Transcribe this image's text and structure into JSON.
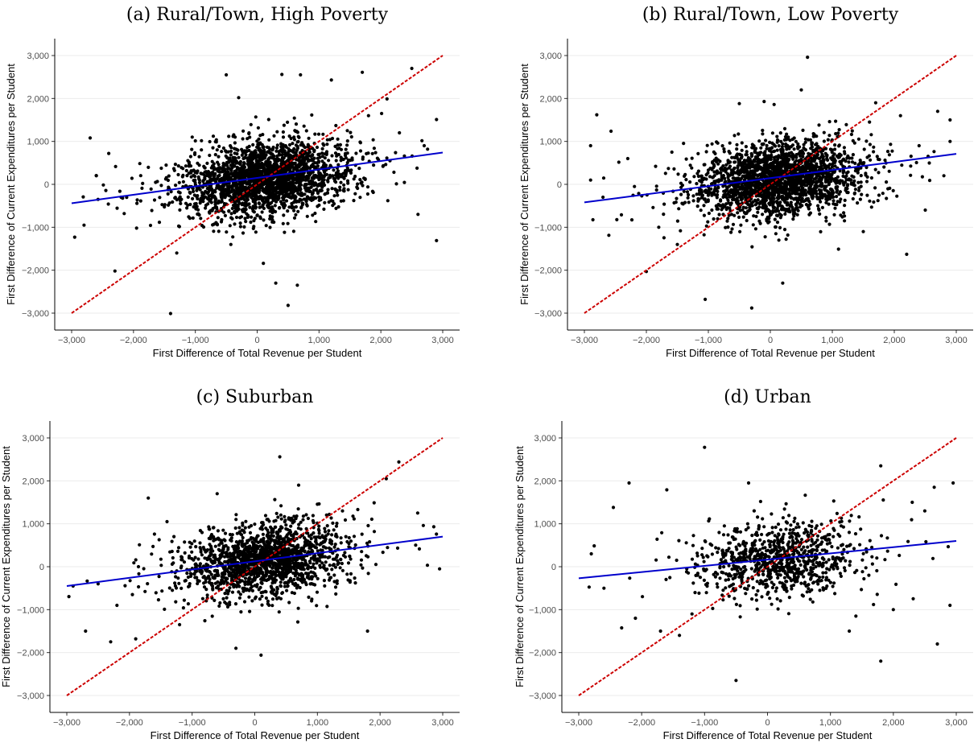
{
  "chart_data": [
    {
      "type": "scatter",
      "title": "(a) Rural/Town, High Poverty",
      "xlabel": "First Difference of Total Revenue per Student",
      "ylabel": "First Difference of Current Expenditures per Student",
      "xlim": [
        -3000,
        3000
      ],
      "ylim": [
        -3000,
        3000
      ],
      "xticks": [
        -3000,
        -2000,
        -1000,
        0,
        1000,
        2000,
        3000
      ],
      "yticks": [
        -3000,
        -2000,
        -1000,
        0,
        1000,
        2000,
        3000
      ],
      "xtick_labels": [
        "−3,000",
        "−2,000",
        "−1,000",
        "0",
        "1,000",
        "2,000",
        "3,000"
      ],
      "ytick_labels": [
        "−3,000",
        "−2,000",
        "−1,000",
        "0",
        "1,000",
        "2,000",
        "3,000"
      ],
      "grid": "horizontal",
      "point_color": "#000000",
      "fit_line": {
        "x": [
          -3000,
          3000
        ],
        "y": [
          -440,
          740
        ],
        "color": "#0000cc"
      },
      "reference_line": {
        "x": [
          -3000,
          3000
        ],
        "y": [
          -3000,
          3000
        ],
        "color": "#cc0000",
        "style": "dashed"
      },
      "points": [
        [
          -2950,
          -1230
        ],
        [
          -2700,
          1080
        ],
        [
          -2400,
          720
        ],
        [
          -2300,
          -2020
        ],
        [
          -2150,
          -680
        ],
        [
          -1950,
          -1020
        ],
        [
          -1400,
          -3010
        ],
        [
          -1050,
          1100
        ],
        [
          -500,
          2550
        ],
        [
          -300,
          2020
        ],
        [
          400,
          2560
        ],
        [
          700,
          2550
        ],
        [
          1200,
          2430
        ],
        [
          1700,
          2610
        ],
        [
          2100,
          1990
        ],
        [
          2500,
          2700
        ],
        [
          2900,
          1510
        ],
        [
          2900,
          -1310
        ],
        [
          500,
          -2820
        ],
        [
          300,
          -2300
        ],
        [
          650,
          -2350
        ],
        [
          100,
          -1840
        ],
        [
          -1300,
          -1600
        ],
        [
          -2800,
          -950
        ],
        [
          1800,
          1600
        ],
        [
          2300,
          1200
        ],
        [
          2700,
          900
        ],
        [
          -2600,
          200
        ],
        [
          -2200,
          -300
        ],
        [
          2600,
          -700
        ]
      ],
      "scatter_center": [
        150,
        140
      ]
    },
    {
      "type": "scatter",
      "title": "(b) Rural/Town, Low Poverty",
      "xlabel": "First Difference of Total Revenue per Student",
      "ylabel": "First Difference of Current Expenditures per Student",
      "xlim": [
        -3000,
        3000
      ],
      "ylim": [
        -3000,
        3000
      ],
      "xticks": [
        -3000,
        -2000,
        -1000,
        0,
        1000,
        2000,
        3000
      ],
      "yticks": [
        -3000,
        -2000,
        -1000,
        0,
        1000,
        2000,
        3000
      ],
      "xtick_labels": [
        "−3,000",
        "−2,000",
        "−1,000",
        "0",
        "1,000",
        "2,000",
        "3,000"
      ],
      "ytick_labels": [
        "−3,000",
        "−2,000",
        "−1,000",
        "0",
        "1,000",
        "2,000",
        "3,000"
      ],
      "grid": "horizontal",
      "point_color": "#000000",
      "fit_line": {
        "x": [
          -3000,
          3000
        ],
        "y": [
          -420,
          710
        ],
        "color": "#0000cc"
      },
      "reference_line": {
        "x": [
          -3000,
          3000
        ],
        "y": [
          -3000,
          3000
        ],
        "color": "#cc0000",
        "style": "dashed"
      },
      "points": [
        [
          -2800,
          1620
        ],
        [
          -2900,
          900
        ],
        [
          -2000,
          -2030
        ],
        [
          -1050,
          -2680
        ],
        [
          -300,
          -2880
        ],
        [
          200,
          -2300
        ],
        [
          1100,
          -1510
        ],
        [
          2200,
          -1630
        ],
        [
          600,
          2960
        ],
        [
          500,
          2200
        ],
        [
          -100,
          1930
        ],
        [
          -500,
          1880
        ],
        [
          1700,
          1900
        ],
        [
          2100,
          1600
        ],
        [
          2900,
          1500
        ],
        [
          2700,
          1700
        ],
        [
          2900,
          1000
        ],
        [
          2800,
          200
        ],
        [
          2500,
          -600
        ],
        [
          -2700,
          -300
        ],
        [
          -2300,
          600
        ],
        [
          -1800,
          -1000
        ],
        [
          -1500,
          -1400
        ],
        [
          1500,
          -1100
        ],
        [
          2400,
          900
        ],
        [
          -2900,
          100
        ]
      ],
      "scatter_center": [
        150,
        130
      ]
    },
    {
      "type": "scatter",
      "title": "(c) Suburban",
      "xlabel": "First Difference of Total Revenue per Student",
      "ylabel": "First Difference of Current Expenditures per Student",
      "xlim": [
        -3000,
        3000
      ],
      "ylim": [
        -3000,
        3000
      ],
      "xticks": [
        -3000,
        -2000,
        -1000,
        0,
        1000,
        2000,
        3000
      ],
      "yticks": [
        -3000,
        -2000,
        -1000,
        0,
        1000,
        2000,
        3000
      ],
      "xtick_labels": [
        "−3,000",
        "−2,000",
        "−1,000",
        "0",
        "1,000",
        "2,000",
        "3,000"
      ],
      "ytick_labels": [
        "−3,000",
        "−2,000",
        "−1,000",
        "0",
        "1,000",
        "2,000",
        "3,000"
      ],
      "grid": "horizontal",
      "point_color": "#000000",
      "fit_line": {
        "x": [
          -3000,
          3000
        ],
        "y": [
          -450,
          700
        ],
        "color": "#0000cc"
      },
      "reference_line": {
        "x": [
          -3000,
          3000
        ],
        "y": [
          -3000,
          3000
        ],
        "color": "#cc0000",
        "style": "dashed"
      },
      "points": [
        [
          -2900,
          -450
        ],
        [
          -2700,
          -1500
        ],
        [
          -2300,
          -1750
        ],
        [
          -1900,
          -1680
        ],
        [
          -1700,
          1600
        ],
        [
          -1400,
          1050
        ],
        [
          -600,
          1700
        ],
        [
          400,
          2560
        ],
        [
          100,
          -2060
        ],
        [
          -300,
          -1900
        ],
        [
          1800,
          -1500
        ],
        [
          2300,
          2440
        ],
        [
          2100,
          2050
        ],
        [
          2900,
          760
        ],
        [
          2950,
          -50
        ],
        [
          -1200,
          -1350
        ],
        [
          700,
          1900
        ],
        [
          1400,
          1300
        ],
        [
          2600,
          1250
        ],
        [
          -2500,
          -400
        ]
      ],
      "scatter_center": [
        150,
        150
      ]
    },
    {
      "type": "scatter",
      "title": "(d) Urban",
      "xlabel": "First Difference of Total Revenue per Student",
      "ylabel": "First Difference of Current Expenditures per Student",
      "xlim": [
        -3000,
        3000
      ],
      "ylim": [
        -3000,
        3000
      ],
      "xticks": [
        -3000,
        -2000,
        -1000,
        0,
        1000,
        2000,
        3000
      ],
      "yticks": [
        -3000,
        -2000,
        -1000,
        0,
        1000,
        2000,
        3000
      ],
      "xtick_labels": [
        "−3,000",
        "−2,000",
        "−1,000",
        "0",
        "1,000",
        "2,000",
        "3,000"
      ],
      "ytick_labels": [
        "−3,000",
        "−2,000",
        "−1,000",
        "0",
        "1,000",
        "2,000",
        "3,000"
      ],
      "grid": "horizontal",
      "point_color": "#000000",
      "fit_line": {
        "x": [
          -3000,
          3000
        ],
        "y": [
          -270,
          600
        ],
        "color": "#0000cc"
      },
      "reference_line": {
        "x": [
          -3000,
          3000
        ],
        "y": [
          -3000,
          3000
        ],
        "color": "#cc0000",
        "style": "dashed"
      },
      "points": [
        [
          -1000,
          2780
        ],
        [
          -2200,
          1950
        ],
        [
          -2450,
          1380
        ],
        [
          -1600,
          1790
        ],
        [
          -500,
          -2650
        ],
        [
          1800,
          -2200
        ],
        [
          2700,
          -1800
        ],
        [
          2650,
          1850
        ],
        [
          2950,
          1950
        ],
        [
          1800,
          2350
        ],
        [
          -2800,
          300
        ],
        [
          -2600,
          -500
        ],
        [
          -2100,
          -1200
        ],
        [
          -1700,
          -1500
        ],
        [
          -1400,
          -1600
        ],
        [
          1300,
          -1500
        ],
        [
          2000,
          -1000
        ],
        [
          2900,
          -900
        ],
        [
          2300,
          1500
        ],
        [
          -300,
          1950
        ],
        [
          -1200,
          -1100
        ],
        [
          2500,
          1300
        ]
      ],
      "scatter_center": [
        200,
        150
      ]
    }
  ]
}
